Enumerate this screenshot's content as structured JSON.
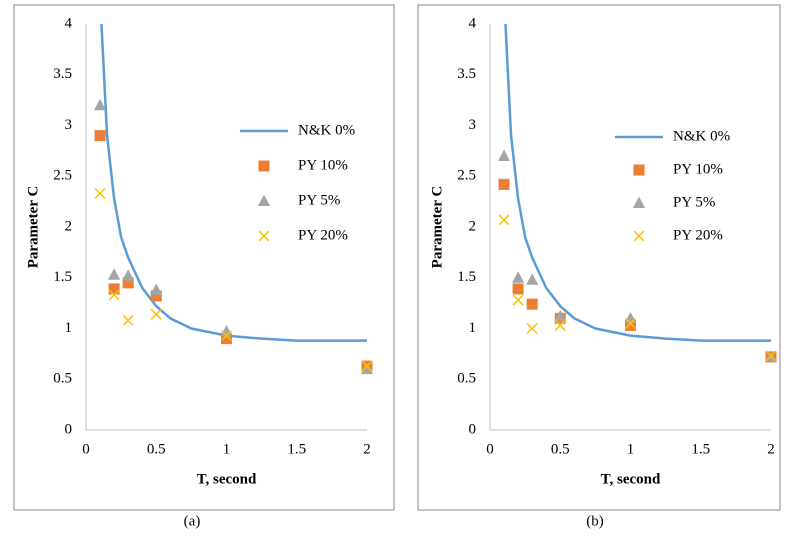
{
  "chart_data": [
    {
      "type": "scatter",
      "caption": "(a)",
      "x_label": "T, second",
      "y_label": "Parameter C",
      "xlim": [
        0,
        2
      ],
      "ylim": [
        0,
        4
      ],
      "xticks": [
        0,
        0.5,
        1,
        1.5,
        2
      ],
      "yticks": [
        0,
        0.5,
        1,
        1.5,
        2,
        2.5,
        3,
        3.5,
        4
      ],
      "grid": false,
      "legend": "right",
      "series": [
        {
          "name": "N&K 0%",
          "color": "#5b9bd5",
          "marker": "line",
          "x": [
            0.11,
            0.15,
            0.2,
            0.25,
            0.3,
            0.4,
            0.5,
            0.6,
            0.75,
            1,
            1.25,
            1.5,
            2
          ],
          "values": [
            4,
            2.9,
            2.28,
            1.9,
            1.7,
            1.4,
            1.22,
            1.1,
            1.0,
            0.93,
            0.9,
            0.88,
            0.88
          ]
        },
        {
          "name": "PY 10%",
          "color": "#ed7d31",
          "marker": "square",
          "x": [
            0.1,
            0.2,
            0.3,
            0.5,
            1,
            2
          ],
          "values": [
            2.9,
            1.39,
            1.45,
            1.32,
            0.9,
            0.63
          ]
        },
        {
          "name": "PY 5%",
          "color": "#a5a5a5",
          "marker": "triangle",
          "x": [
            0.1,
            0.2,
            0.3,
            0.5,
            1,
            2
          ],
          "values": [
            3.2,
            1.53,
            1.52,
            1.38,
            0.97,
            0.6
          ]
        },
        {
          "name": "PY 20%",
          "color": "#ffc000",
          "marker": "cross",
          "x": [
            0.1,
            0.2,
            0.3,
            0.5,
            1,
            2
          ],
          "values": [
            2.33,
            1.33,
            1.08,
            1.14,
            0.93,
            0.63
          ]
        }
      ]
    },
    {
      "type": "scatter",
      "caption": "(b)",
      "x_label": "T, second",
      "y_label": "Parameter C",
      "xlim": [
        0,
        2
      ],
      "ylim": [
        0,
        4
      ],
      "xticks": [
        0,
        0.5,
        1,
        1.5,
        2
      ],
      "yticks": [
        0,
        0.5,
        1,
        1.5,
        2,
        2.5,
        3,
        3.5,
        4
      ],
      "grid": false,
      "legend": "right",
      "series": [
        {
          "name": "N&K 0%",
          "color": "#5b9bd5",
          "marker": "line",
          "x": [
            0.11,
            0.15,
            0.2,
            0.25,
            0.3,
            0.4,
            0.5,
            0.6,
            0.75,
            1,
            1.25,
            1.5,
            2
          ],
          "values": [
            4,
            2.9,
            2.28,
            1.9,
            1.7,
            1.4,
            1.22,
            1.1,
            1.0,
            0.93,
            0.9,
            0.88,
            0.88
          ]
        },
        {
          "name": "PY 10%",
          "color": "#ed7d31",
          "marker": "square",
          "x": [
            0.1,
            0.2,
            0.3,
            0.5,
            1,
            2
          ],
          "values": [
            2.42,
            1.39,
            1.24,
            1.1,
            1.03,
            0.72
          ]
        },
        {
          "name": "PY 5%",
          "color": "#a5a5a5",
          "marker": "triangle",
          "x": [
            0.1,
            0.2,
            0.3,
            0.5,
            1,
            2
          ],
          "values": [
            2.7,
            1.5,
            1.48,
            1.12,
            1.1,
            0.72
          ]
        },
        {
          "name": "PY 20%",
          "color": "#ffc000",
          "marker": "cross",
          "x": [
            0.1,
            0.2,
            0.3,
            0.5,
            1,
            2
          ],
          "values": [
            2.07,
            1.28,
            1.0,
            1.03,
            1.05,
            0.73
          ]
        }
      ]
    }
  ]
}
